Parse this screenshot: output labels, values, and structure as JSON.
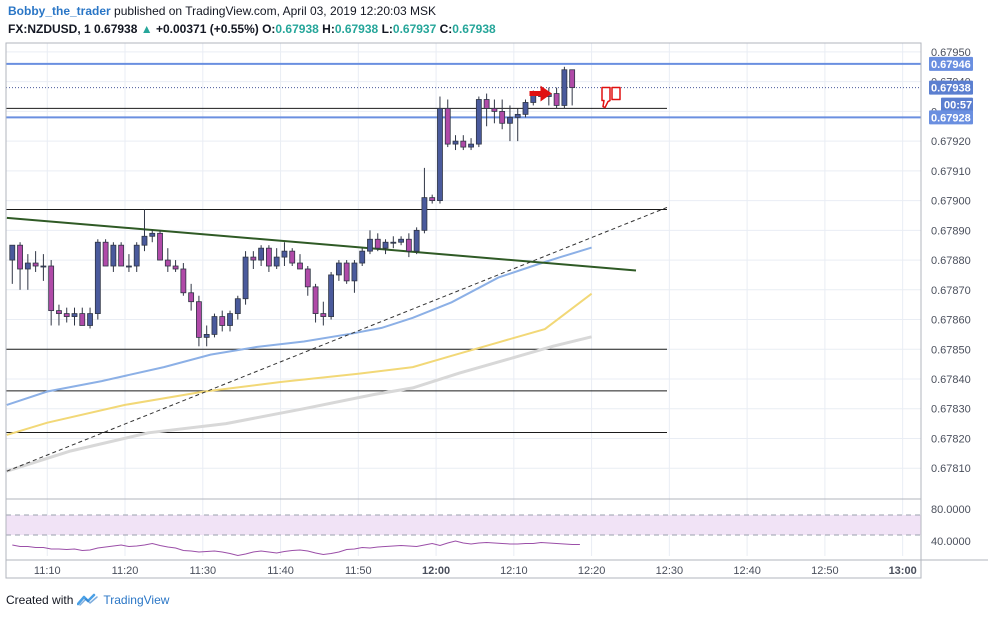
{
  "header": {
    "author": "Bobby_the_trader",
    "published_text": "published on TradingView.com, April 03, 2019 12:20:03 MSK",
    "symbol": "FX:NZDUSD, 1",
    "last": "0.67938",
    "change": "+0.00371 (+0.55%)",
    "o_label": "O:",
    "o_value": "0.67938",
    "h_label": "H:",
    "h_value": "0.67938",
    "l_label": "L:",
    "l_value": "0.67937",
    "c_label": "C:",
    "c_value": "0.67938"
  },
  "footer": {
    "created_with": "Created with",
    "brand": "TradingView"
  },
  "price_labels": {
    "resistance": "0.67946",
    "current": "0.67938",
    "countdown": "00:57",
    "support": "0.67928"
  },
  "colors": {
    "bull_candle": "#4a5a9c",
    "bear_candle": "#b04aa8",
    "sma_fast": "#8cb0e6",
    "sma_mid": "#f2d877",
    "sma_slow": "#d8d8d8",
    "trendline": "#2f5a25",
    "level_line": "#6a8fe0",
    "rsi_fill": "#f1e3f6",
    "rsi_line": "#9b4fa8",
    "arrow": "#e01010"
  },
  "icons": [
    "red-arrow-right-icon",
    "thumbs-down-icon",
    "tradingview-logo-icon"
  ],
  "chart_data": {
    "type": "candlestick",
    "x_ticks": [
      "11:10",
      "11:20",
      "11:30",
      "11:40",
      "11:50",
      "12:00",
      "12:10",
      "12:20",
      "12:30",
      "12:40",
      "12:50",
      "13:00"
    ],
    "y_ticks": [
      "0.67810",
      "0.67820",
      "0.67830",
      "0.67840",
      "0.67850",
      "0.67860",
      "0.67870",
      "0.67880",
      "0.67890",
      "0.67900",
      "0.67910",
      "0.67920",
      "0.67930",
      "0.67940",
      "0.67950"
    ],
    "ylim": [
      0.67802,
      0.67953
    ],
    "candles_start": "11:05",
    "candle_interval_minutes": 1,
    "candles": [
      {
        "o": 0.6788,
        "h": 0.67885,
        "l": 0.67872,
        "c": 0.67885
      },
      {
        "o": 0.67885,
        "h": 0.67886,
        "l": 0.6787,
        "c": 0.67877
      },
      {
        "o": 0.67877,
        "h": 0.67882,
        "l": 0.6787,
        "c": 0.67879
      },
      {
        "o": 0.67879,
        "h": 0.67883,
        "l": 0.67876,
        "c": 0.67878
      },
      {
        "o": 0.67878,
        "h": 0.67882,
        "l": 0.67873,
        "c": 0.67878
      },
      {
        "o": 0.67878,
        "h": 0.6788,
        "l": 0.67858,
        "c": 0.67863
      },
      {
        "o": 0.67863,
        "h": 0.67865,
        "l": 0.67858,
        "c": 0.67862
      },
      {
        "o": 0.67862,
        "h": 0.67864,
        "l": 0.67859,
        "c": 0.67861
      },
      {
        "o": 0.67861,
        "h": 0.67864,
        "l": 0.67858,
        "c": 0.67862
      },
      {
        "o": 0.67862,
        "h": 0.67864,
        "l": 0.67858,
        "c": 0.67858
      },
      {
        "o": 0.67858,
        "h": 0.67864,
        "l": 0.67857,
        "c": 0.67862
      },
      {
        "o": 0.67862,
        "h": 0.67887,
        "l": 0.6786,
        "c": 0.67886
      },
      {
        "o": 0.67886,
        "h": 0.67887,
        "l": 0.67878,
        "c": 0.67878
      },
      {
        "o": 0.67878,
        "h": 0.67886,
        "l": 0.67876,
        "c": 0.67885
      },
      {
        "o": 0.67885,
        "h": 0.67886,
        "l": 0.67878,
        "c": 0.67878
      },
      {
        "o": 0.67878,
        "h": 0.67882,
        "l": 0.67876,
        "c": 0.67878
      },
      {
        "o": 0.67878,
        "h": 0.67886,
        "l": 0.67876,
        "c": 0.67885
      },
      {
        "o": 0.67885,
        "h": 0.67897,
        "l": 0.67883,
        "c": 0.67888
      },
      {
        "o": 0.67888,
        "h": 0.6789,
        "l": 0.67886,
        "c": 0.67889
      },
      {
        "o": 0.67889,
        "h": 0.6789,
        "l": 0.6788,
        "c": 0.6788
      },
      {
        "o": 0.6788,
        "h": 0.67884,
        "l": 0.67876,
        "c": 0.67878
      },
      {
        "o": 0.67878,
        "h": 0.6788,
        "l": 0.67876,
        "c": 0.67877
      },
      {
        "o": 0.67877,
        "h": 0.67879,
        "l": 0.67868,
        "c": 0.67869
      },
      {
        "o": 0.67869,
        "h": 0.67872,
        "l": 0.67863,
        "c": 0.67866
      },
      {
        "o": 0.67866,
        "h": 0.67868,
        "l": 0.67851,
        "c": 0.67854
      },
      {
        "o": 0.67854,
        "h": 0.67858,
        "l": 0.67851,
        "c": 0.67855
      },
      {
        "o": 0.67855,
        "h": 0.67862,
        "l": 0.67854,
        "c": 0.67861
      },
      {
        "o": 0.67861,
        "h": 0.67863,
        "l": 0.67856,
        "c": 0.67858
      },
      {
        "o": 0.67858,
        "h": 0.67863,
        "l": 0.67856,
        "c": 0.67862
      },
      {
        "o": 0.67862,
        "h": 0.67868,
        "l": 0.6786,
        "c": 0.67867
      },
      {
        "o": 0.67867,
        "h": 0.67883,
        "l": 0.67865,
        "c": 0.67881
      },
      {
        "o": 0.67881,
        "h": 0.67883,
        "l": 0.67877,
        "c": 0.6788
      },
      {
        "o": 0.6788,
        "h": 0.67885,
        "l": 0.67878,
        "c": 0.67884
      },
      {
        "o": 0.67884,
        "h": 0.67885,
        "l": 0.67876,
        "c": 0.67878
      },
      {
        "o": 0.67878,
        "h": 0.67884,
        "l": 0.67877,
        "c": 0.67881
      },
      {
        "o": 0.67881,
        "h": 0.67886,
        "l": 0.67878,
        "c": 0.67883
      },
      {
        "o": 0.67883,
        "h": 0.67884,
        "l": 0.67878,
        "c": 0.67879
      },
      {
        "o": 0.67879,
        "h": 0.67882,
        "l": 0.67877,
        "c": 0.67877
      },
      {
        "o": 0.67877,
        "h": 0.67878,
        "l": 0.67868,
        "c": 0.67871
      },
      {
        "o": 0.67871,
        "h": 0.67872,
        "l": 0.67859,
        "c": 0.67862
      },
      {
        "o": 0.67862,
        "h": 0.67866,
        "l": 0.67858,
        "c": 0.67861
      },
      {
        "o": 0.67861,
        "h": 0.67876,
        "l": 0.6786,
        "c": 0.67875
      },
      {
        "o": 0.67875,
        "h": 0.6788,
        "l": 0.67873,
        "c": 0.67879
      },
      {
        "o": 0.67879,
        "h": 0.6788,
        "l": 0.67872,
        "c": 0.67873
      },
      {
        "o": 0.67873,
        "h": 0.6788,
        "l": 0.67869,
        "c": 0.67879
      },
      {
        "o": 0.67879,
        "h": 0.67884,
        "l": 0.67878,
        "c": 0.67883
      },
      {
        "o": 0.67883,
        "h": 0.6789,
        "l": 0.67882,
        "c": 0.67887
      },
      {
        "o": 0.67887,
        "h": 0.67889,
        "l": 0.67883,
        "c": 0.67884
      },
      {
        "o": 0.67884,
        "h": 0.67887,
        "l": 0.67882,
        "c": 0.67886
      },
      {
        "o": 0.67886,
        "h": 0.67888,
        "l": 0.67884,
        "c": 0.67886
      },
      {
        "o": 0.67886,
        "h": 0.67888,
        "l": 0.67885,
        "c": 0.67887
      },
      {
        "o": 0.67887,
        "h": 0.67889,
        "l": 0.67881,
        "c": 0.67883
      },
      {
        "o": 0.67883,
        "h": 0.67891,
        "l": 0.67882,
        "c": 0.6789
      },
      {
        "o": 0.6789,
        "h": 0.67911,
        "l": 0.67889,
        "c": 0.67901
      },
      {
        "o": 0.67901,
        "h": 0.67902,
        "l": 0.67899,
        "c": 0.679
      },
      {
        "o": 0.679,
        "h": 0.67935,
        "l": 0.67899,
        "c": 0.67931
      },
      {
        "o": 0.67931,
        "h": 0.67934,
        "l": 0.67918,
        "c": 0.67919
      },
      {
        "o": 0.67919,
        "h": 0.67922,
        "l": 0.67917,
        "c": 0.6792
      },
      {
        "o": 0.6792,
        "h": 0.67922,
        "l": 0.67917,
        "c": 0.67918
      },
      {
        "o": 0.67918,
        "h": 0.67921,
        "l": 0.67917,
        "c": 0.67919
      },
      {
        "o": 0.67919,
        "h": 0.67935,
        "l": 0.67918,
        "c": 0.67934
      },
      {
        "o": 0.67934,
        "h": 0.67936,
        "l": 0.67925,
        "c": 0.67931
      },
      {
        "o": 0.67931,
        "h": 0.67934,
        "l": 0.67926,
        "c": 0.6793
      },
      {
        "o": 0.6793,
        "h": 0.67934,
        "l": 0.67924,
        "c": 0.67926
      },
      {
        "o": 0.67926,
        "h": 0.67932,
        "l": 0.6792,
        "c": 0.67928
      },
      {
        "o": 0.67928,
        "h": 0.67931,
        "l": 0.6792,
        "c": 0.67929
      },
      {
        "o": 0.67929,
        "h": 0.67934,
        "l": 0.67928,
        "c": 0.67933
      },
      {
        "o": 0.67933,
        "h": 0.67937,
        "l": 0.67932,
        "c": 0.67936
      },
      {
        "o": 0.67936,
        "h": 0.67938,
        "l": 0.67934,
        "c": 0.67935
      },
      {
        "o": 0.67935,
        "h": 0.67938,
        "l": 0.67932,
        "c": 0.67936
      },
      {
        "o": 0.67936,
        "h": 0.67938,
        "l": 0.67931,
        "c": 0.67932
      },
      {
        "o": 0.67932,
        "h": 0.67945,
        "l": 0.67931,
        "c": 0.67944
      },
      {
        "o": 0.67944,
        "h": 0.67944,
        "l": 0.67932,
        "c": 0.67938
      }
    ],
    "horizontal_levels": [
      {
        "value": 0.67946,
        "style": "blue"
      },
      {
        "value": 0.67928,
        "style": "blue"
      },
      {
        "value": 0.67931,
        "style": "thin"
      },
      {
        "value": 0.67897,
        "style": "thin"
      },
      {
        "value": 0.6785,
        "style": "thin"
      },
      {
        "value": 0.67836,
        "style": "thin"
      },
      {
        "value": 0.67822,
        "style": "thin"
      }
    ],
    "rsi": {
      "y_ticks": [
        "80.0000",
        "40.0000"
      ],
      "values": [
        58,
        55,
        55,
        53,
        53,
        50,
        50,
        49,
        50,
        47,
        48,
        52,
        54,
        56,
        58,
        55,
        56,
        58,
        61,
        57,
        54,
        52,
        47,
        46,
        44,
        45,
        46,
        44,
        41,
        37,
        40,
        44,
        46,
        44,
        42,
        45,
        47,
        48,
        46,
        42,
        39,
        41,
        44,
        49,
        50,
        53,
        52,
        54,
        55,
        56,
        57,
        56,
        55,
        58,
        61,
        57,
        62,
        66,
        62,
        60,
        62,
        63,
        62,
        61,
        60,
        60,
        61,
        61,
        63,
        62,
        61,
        60,
        59,
        59
      ]
    }
  }
}
